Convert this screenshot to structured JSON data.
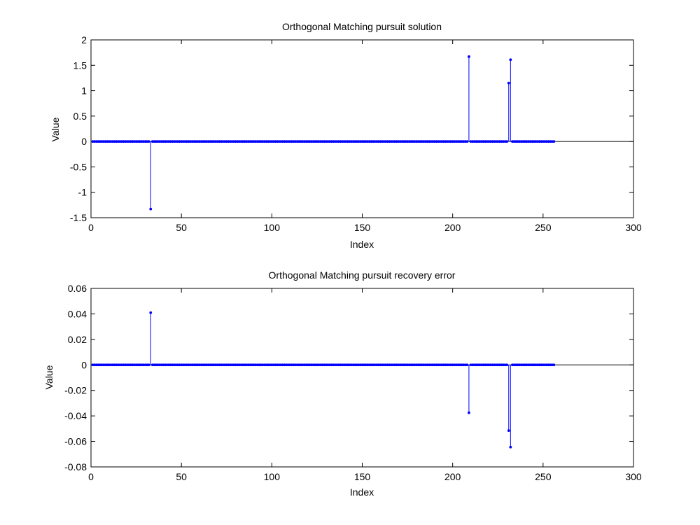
{
  "chart_data": [
    {
      "type": "stem",
      "title": "Orthogonal Matching pursuit solution",
      "xlabel": "Index",
      "ylabel": "Value",
      "xlim": [
        0,
        300
      ],
      "ylim": [
        -1.5,
        2
      ],
      "xticks": [
        0,
        50,
        100,
        150,
        200,
        250,
        300
      ],
      "xtick_labels": [
        "0",
        "50",
        "100",
        "150",
        "200",
        "250",
        "300"
      ],
      "yticks": [
        -1.5,
        -1,
        -0.5,
        0,
        0.5,
        1,
        1.5,
        2
      ],
      "ytick_labels": [
        "-1.5",
        "-1",
        "-0.5",
        "0",
        "0.5",
        "1",
        "1.5",
        "2"
      ],
      "n_points": 256,
      "baseline": 0,
      "nonzero": [
        {
          "x": 33,
          "y": -1.33
        },
        {
          "x": 209,
          "y": 1.67
        },
        {
          "x": 231,
          "y": 1.15
        },
        {
          "x": 232,
          "y": 1.61
        }
      ],
      "color": "#0000ff"
    },
    {
      "type": "stem",
      "title": "Orthogonal Matching pursuit recovery error",
      "xlabel": "Index",
      "ylabel": "Value",
      "xlim": [
        0,
        300
      ],
      "ylim": [
        -0.08,
        0.06
      ],
      "xticks": [
        0,
        50,
        100,
        150,
        200,
        250,
        300
      ],
      "xtick_labels": [
        "0",
        "50",
        "100",
        "150",
        "200",
        "250",
        "300"
      ],
      "yticks": [
        -0.08,
        -0.06,
        -0.04,
        -0.02,
        0,
        0.02,
        0.04,
        0.06
      ],
      "ytick_labels": [
        "-0.08",
        "-0.06",
        "-0.04",
        "-0.02",
        "0",
        "0.02",
        "0.04",
        "0.06"
      ],
      "n_points": 256,
      "baseline": 0,
      "nonzero": [
        {
          "x": 33,
          "y": 0.041
        },
        {
          "x": 209,
          "y": -0.0375
        },
        {
          "x": 231,
          "y": -0.0515
        },
        {
          "x": 232,
          "y": -0.0645
        }
      ],
      "color": "#0000ff"
    }
  ]
}
